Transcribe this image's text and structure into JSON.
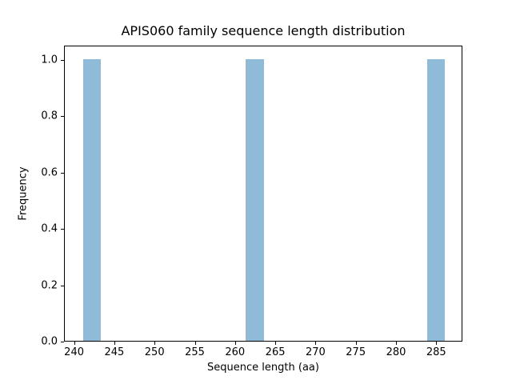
{
  "chart_data": {
    "type": "bar",
    "title": "APIS060 family sequence length distribution",
    "xlabel": "Sequence length (aa)",
    "ylabel": "Frequency",
    "bars": [
      {
        "x_start": 241.0,
        "x_end": 243.25,
        "frequency": 1.0
      },
      {
        "x_start": 261.25,
        "x_end": 263.5,
        "frequency": 1.0
      },
      {
        "x_start": 283.75,
        "x_end": 286.0,
        "frequency": 1.0
      }
    ],
    "bin_width": 2.25,
    "xticks": [
      240,
      245,
      250,
      255,
      260,
      265,
      270,
      275,
      280,
      285
    ],
    "yticks": [
      {
        "value": 0.0,
        "label": "0.0"
      },
      {
        "value": 0.2,
        "label": "0.2"
      },
      {
        "value": 0.4,
        "label": "0.4"
      },
      {
        "value": 0.6,
        "label": "0.6"
      },
      {
        "value": 0.8,
        "label": "0.8"
      },
      {
        "value": 1.0,
        "label": "1.0"
      }
    ],
    "xlim": [
      238.75,
      288.25
    ],
    "ylim": [
      0,
      1.05
    ],
    "bar_color": "#8fbbd9",
    "axis_color": "#000000",
    "grid": false,
    "legend": null
  }
}
